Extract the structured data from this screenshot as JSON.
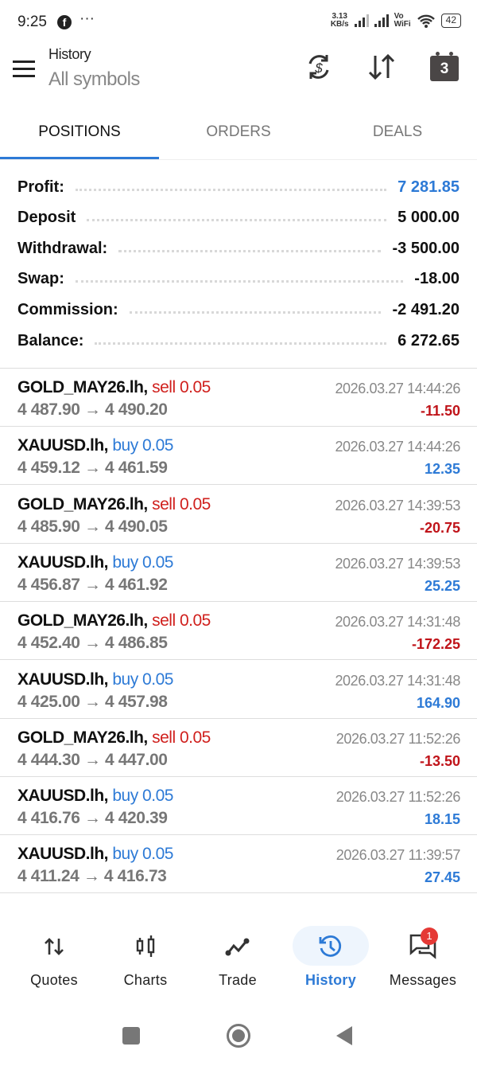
{
  "status_bar": {
    "time": "9:25",
    "speed_value": "3.13",
    "speed_unit": "KB/s",
    "vowifi_top": "Vo",
    "vowifi_bottom": "WiFi",
    "battery": "42"
  },
  "header": {
    "title": "History",
    "subtitle": "All symbols",
    "calendar_day": "3"
  },
  "tabs": [
    {
      "label": "POSITIONS",
      "active": true
    },
    {
      "label": "ORDERS"
    },
    {
      "label": "DEALS"
    }
  ],
  "summary": [
    {
      "label": "Profit:",
      "value": "7 281.85",
      "color": "#2d7ad6"
    },
    {
      "label": "Deposit",
      "value": "5 000.00"
    },
    {
      "label": "Withdrawal:",
      "value": "-3 500.00"
    },
    {
      "label": "Swap:",
      "value": "-18.00"
    },
    {
      "label": "Commission:",
      "value": "-2 491.20"
    },
    {
      "label": "Balance:",
      "value": "6 272.65"
    }
  ],
  "colors": {
    "sell": "#d0201d",
    "buy": "#2d7ad6",
    "loss": "#c0141a",
    "profit": "#2d7ad6",
    "accent": "#2d7ad6"
  },
  "positions": [
    {
      "symbol": "GOLD_MAY26.lh,",
      "side": "sell 0.05",
      "open": "4 487.90",
      "close": "4 490.20",
      "time": "2026.03.27 14:44:26",
      "profit": "-11.50"
    },
    {
      "symbol": "XAUUSD.lh,",
      "side": "buy 0.05",
      "open": "4 459.12",
      "close": "4 461.59",
      "time": "2026.03.27 14:44:26",
      "profit": "12.35"
    },
    {
      "symbol": "GOLD_MAY26.lh,",
      "side": "sell 0.05",
      "open": "4 485.90",
      "close": "4 490.05",
      "time": "2026.03.27 14:39:53",
      "profit": "-20.75"
    },
    {
      "symbol": "XAUUSD.lh,",
      "side": "buy 0.05",
      "open": "4 456.87",
      "close": "4 461.92",
      "time": "2026.03.27 14:39:53",
      "profit": "25.25"
    },
    {
      "symbol": "GOLD_MAY26.lh,",
      "side": "sell 0.05",
      "open": "4 452.40",
      "close": "4 486.85",
      "time": "2026.03.27 14:31:48",
      "profit": "-172.25"
    },
    {
      "symbol": "XAUUSD.lh,",
      "side": "buy 0.05",
      "open": "4 425.00",
      "close": "4 457.98",
      "time": "2026.03.27 14:31:48",
      "profit": "164.90"
    },
    {
      "symbol": "GOLD_MAY26.lh,",
      "side": "sell 0.05",
      "open": "4 444.30",
      "close": "4 447.00",
      "time": "2026.03.27 11:52:26",
      "profit": "-13.50"
    },
    {
      "symbol": "XAUUSD.lh,",
      "side": "buy 0.05",
      "open": "4 416.76",
      "close": "4 420.39",
      "time": "2026.03.27 11:52:26",
      "profit": "18.15"
    },
    {
      "symbol": "XAUUSD.lh,",
      "side": "buy 0.05",
      "open": "4 411.24",
      "close": "4 416.73",
      "time": "2026.03.27 11:39:57",
      "profit": "27.45"
    }
  ],
  "arrow": "→",
  "bottom_nav": [
    {
      "label": "Quotes",
      "icon": "quotes-icon"
    },
    {
      "label": "Charts",
      "icon": "candlestick-icon"
    },
    {
      "label": "Trade",
      "icon": "trade-line-icon"
    },
    {
      "label": "History",
      "icon": "history-icon",
      "active": true
    },
    {
      "label": "Messages",
      "icon": "messages-icon",
      "badge": "1"
    }
  ]
}
